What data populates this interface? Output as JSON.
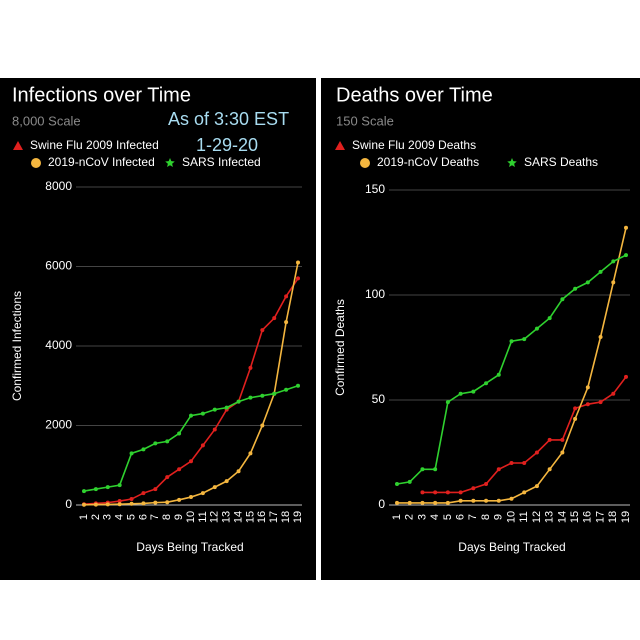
{
  "chart_data": [
    {
      "type": "line",
      "title": "Infections over Time",
      "subtitle": "8,000 Scale",
      "annotations": [
        "As of 3:30 EST",
        "1-29-20"
      ],
      "x_label": "Days Being Tracked",
      "y_label": "Confirmed Infections",
      "categories": [
        "1",
        "2",
        "3",
        "4",
        "5",
        "6",
        "7",
        "8",
        "9",
        "10",
        "11",
        "12",
        "13",
        "14",
        "15",
        "16",
        "17",
        "18",
        "19"
      ],
      "series": [
        {
          "name": "Swine Flu 2009 Infected",
          "color": "#e0201e",
          "marker": "triangle",
          "values": [
            20,
            40,
            60,
            100,
            150,
            300,
            400,
            700,
            900,
            1100,
            1500,
            1900,
            2400,
            2600,
            3450,
            4400,
            4700,
            5250,
            5700
          ]
        },
        {
          "name": "2019-nCoV Infected",
          "color": "#f4b63f",
          "marker": "circle",
          "values": [
            5,
            10,
            15,
            20,
            30,
            40,
            60,
            70,
            130,
            200,
            300,
            450,
            600,
            850,
            1300,
            2000,
            2800,
            4600,
            6100
          ]
        },
        {
          "name": "SARS Infected",
          "color": "#2fd12f",
          "marker": "star",
          "values": [
            350,
            400,
            450,
            500,
            1300,
            1400,
            1550,
            1600,
            1800,
            2250,
            2300,
            2400,
            2450,
            2600,
            2700,
            2750,
            2800,
            2900,
            3000
          ]
        }
      ],
      "ylim": [
        0,
        8000
      ],
      "yticks": [
        0,
        2000,
        4000,
        6000,
        8000
      ],
      "grid": true
    },
    {
      "type": "line",
      "title": "Deaths over Time",
      "subtitle": "150 Scale",
      "x_label": "Days Being Tracked",
      "y_label": "Confirmed  Deaths",
      "categories": [
        "1",
        "2",
        "3",
        "4",
        "5",
        "6",
        "7",
        "8",
        "9",
        "10",
        "11",
        "12",
        "13",
        "14",
        "15",
        "16",
        "17",
        "18",
        "19"
      ],
      "series": [
        {
          "name": "Swine Flu 2009 Deaths",
          "color": "#e0201e",
          "marker": "triangle",
          "values": [
            null,
            null,
            6,
            6,
            6,
            6,
            8,
            10,
            17,
            20,
            20,
            25,
            31,
            31,
            46,
            48,
            49,
            53,
            61
          ]
        },
        {
          "name": "2019-nCoV Deaths",
          "color": "#f4b63f",
          "marker": "circle",
          "values": [
            1,
            1,
            1,
            1,
            1,
            2,
            2,
            2,
            2,
            3,
            6,
            9,
            17,
            25,
            41,
            56,
            80,
            106,
            132
          ]
        },
        {
          "name": "SARS Deaths",
          "color": "#2fd12f",
          "marker": "star",
          "values": [
            10,
            11,
            17,
            17,
            49,
            53,
            54,
            58,
            62,
            78,
            79,
            84,
            89,
            98,
            103,
            106,
            111,
            116,
            119
          ]
        }
      ],
      "ylim": [
        0,
        150
      ],
      "yticks": [
        0,
        50,
        100,
        150
      ],
      "grid": true
    }
  ]
}
